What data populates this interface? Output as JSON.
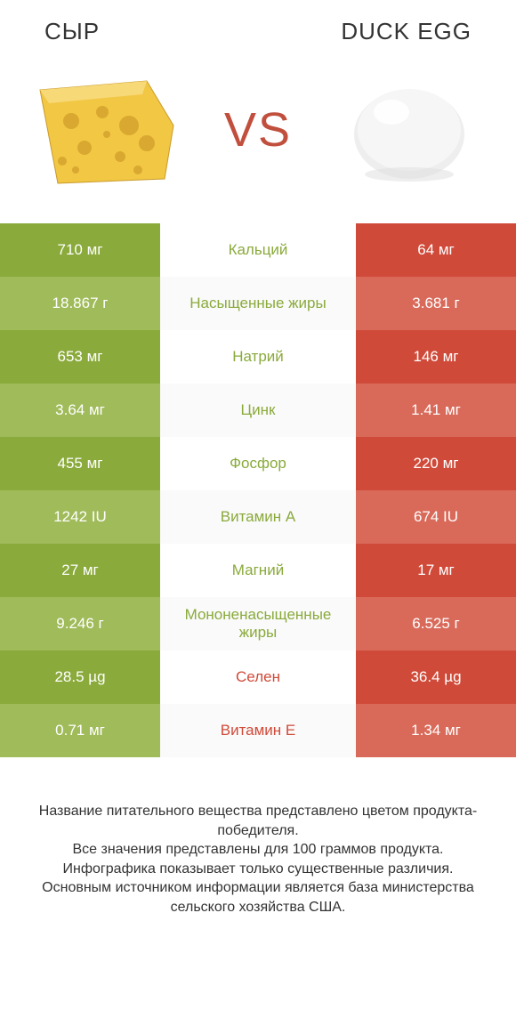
{
  "header": {
    "left": "СЫР",
    "right": "DUCK EGG"
  },
  "vs": "VS",
  "colors": {
    "green_dark": "#8aaa3b",
    "green_light": "#a0bb5a",
    "red_dark": "#d04a39",
    "red_light": "#d96a5a",
    "mid_alt": "#fafafa",
    "white": "#ffffff"
  },
  "rows": [
    {
      "left": "710 мг",
      "mid": "Кальций",
      "right": "64 мг",
      "winner": "green"
    },
    {
      "left": "18.867 г",
      "mid": "Насыщенные жиры",
      "right": "3.681 г",
      "winner": "green"
    },
    {
      "left": "653 мг",
      "mid": "Натрий",
      "right": "146 мг",
      "winner": "green"
    },
    {
      "left": "3.64 мг",
      "mid": "Цинк",
      "right": "1.41 мг",
      "winner": "green"
    },
    {
      "left": "455 мг",
      "mid": "Фосфор",
      "right": "220 мг",
      "winner": "green"
    },
    {
      "left": "1242 IU",
      "mid": "Витамин A",
      "right": "674 IU",
      "winner": "green"
    },
    {
      "left": "27 мг",
      "mid": "Магний",
      "right": "17 мг",
      "winner": "green"
    },
    {
      "left": "9.246 г",
      "mid": "Мононенасыщенные жиры",
      "right": "6.525 г",
      "winner": "green"
    },
    {
      "left": "28.5 µg",
      "mid": "Селен",
      "right": "36.4 µg",
      "winner": "red"
    },
    {
      "left": "0.71 мг",
      "mid": "Витамин E",
      "right": "1.34 мг",
      "winner": "red"
    }
  ],
  "footer": [
    "Название питательного вещества представлено цветом продукта-победителя.",
    "Все значения представлены для 100 граммов продукта.",
    "Инфографика показывает только существенные различия.",
    "Основным источником информации является база министерства сельского хозяйства США."
  ]
}
